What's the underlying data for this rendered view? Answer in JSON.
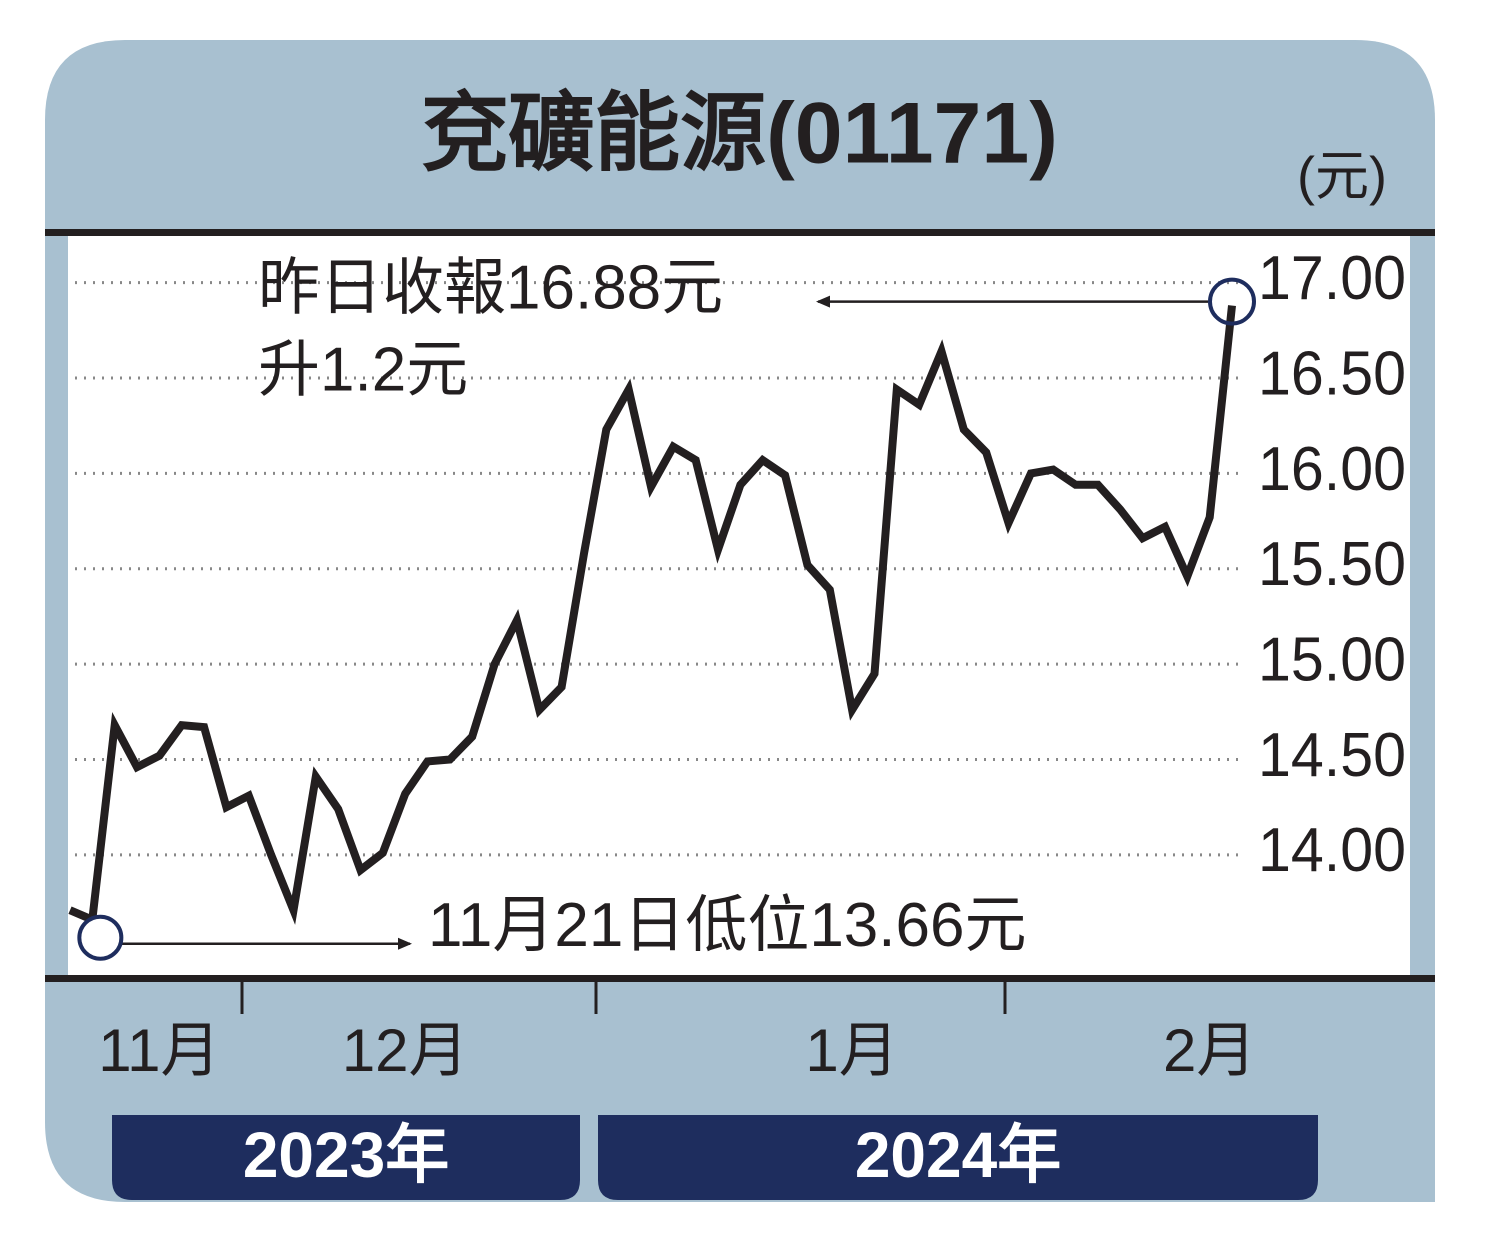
{
  "chart_data": {
    "type": "line",
    "title": "兗礦能源(01171)",
    "y_unit": "(元)",
    "categories": [
      null,
      null,
      null,
      null,
      "11月",
      null,
      null,
      null,
      null,
      null,
      null,
      null,
      null,
      null,
      null,
      "12月",
      null,
      null,
      null,
      null,
      null,
      null,
      null,
      null,
      null,
      null,
      null,
      null,
      null,
      null,
      null,
      null,
      null,
      null,
      null,
      "1月",
      null,
      null,
      null,
      null,
      null,
      null,
      null,
      null,
      null,
      null,
      null,
      null,
      null,
      null,
      null,
      "2月",
      null
    ],
    "values": [
      13.71,
      13.66,
      14.68,
      14.46,
      14.52,
      14.68,
      14.67,
      14.25,
      14.31,
      14.0,
      13.71,
      14.41,
      14.24,
      13.92,
      14.01,
      14.32,
      14.49,
      14.5,
      14.62,
      15.0,
      15.23,
      14.76,
      14.88,
      15.58,
      16.23,
      16.44,
      15.93,
      16.14,
      16.07,
      15.6,
      15.94,
      16.07,
      15.99,
      15.52,
      15.39,
      14.76,
      14.95,
      16.44,
      16.36,
      16.64,
      16.23,
      16.11,
      15.74,
      16.0,
      16.02,
      15.94,
      15.94,
      15.81,
      15.66,
      15.72,
      15.46,
      15.77,
      16.88
    ],
    "color": "#231f20",
    "ylim": [
      13.37,
      17.25
    ],
    "yticks": [
      {
        "value": 14,
        "label": "14.00"
      },
      {
        "value": 14.5,
        "label": "14.50"
      },
      {
        "value": 15,
        "label": "15.00"
      },
      {
        "value": 15.5,
        "label": "15.50"
      },
      {
        "value": 16,
        "label": "16.00"
      },
      {
        "value": 16.5,
        "label": "16.50"
      },
      {
        "value": 17,
        "label": "17.00"
      }
    ],
    "grid": true,
    "year_labels": [
      "2023年",
      "2024年"
    ],
    "annotations": [
      "昨日收報16.88元",
      "升1.2元",
      "11月21日低位13.66元"
    ]
  }
}
